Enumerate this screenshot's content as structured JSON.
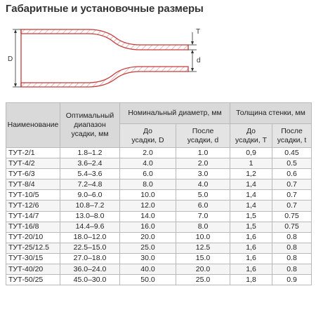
{
  "title": "Габаритные и установочные размеры",
  "diagram": {
    "label_D": "D",
    "label_T": "T",
    "label_d": "d"
  },
  "table": {
    "headers": {
      "name": "Наименование",
      "range_line1": "Оптимальный",
      "range_line2": "диапазон",
      "range_line3": "усадки, мм",
      "diameter_group": "Номинальный диаметр, мм",
      "wall_group": "Толщина стенки, мм",
      "before_D_line1": "До",
      "before_D_line2": "усадки, D",
      "after_d_line1": "После",
      "after_d_line2": "усадки, d",
      "before_T_line1": "До",
      "before_T_line2": "усадки, T",
      "after_t_line1": "После",
      "after_t_line2": "усадки, t"
    },
    "rows": [
      {
        "name": "ТУТ-2/1",
        "range": "1.8–1.2",
        "D": "2.0",
        "d": "1.0",
        "T": "0,9",
        "t": "0.45"
      },
      {
        "name": "ТУТ-4/2",
        "range": "3.6–2.4",
        "D": "4.0",
        "d": "2.0",
        "T": "1",
        "t": "0.5"
      },
      {
        "name": "ТУТ-6/3",
        "range": "5.4–3.6",
        "D": "6.0",
        "d": "3.0",
        "T": "1,2",
        "t": "0.6"
      },
      {
        "name": "ТУТ-8/4",
        "range": "7.2–4.8",
        "D": "8.0",
        "d": "4.0",
        "T": "1,4",
        "t": "0.7"
      },
      {
        "name": "ТУТ-10/5",
        "range": "9.0–6.0",
        "D": "10.0",
        "d": "5.0",
        "T": "1,4",
        "t": "0.7"
      },
      {
        "name": "ТУТ-12/6",
        "range": "10.8–7.2",
        "D": "12.0",
        "d": "6.0",
        "T": "1,4",
        "t": "0.7"
      },
      {
        "name": "ТУТ-14/7",
        "range": "13.0–8.0",
        "D": "14.0",
        "d": "7.0",
        "T": "1,5",
        "t": "0.75"
      },
      {
        "name": "ТУТ-16/8",
        "range": "14.4–9.6",
        "D": "16.0",
        "d": "8.0",
        "T": "1,5",
        "t": "0.75"
      },
      {
        "name": "ТУТ-20/10",
        "range": "18.0–12.0",
        "D": "20.0",
        "d": "10.0",
        "T": "1,6",
        "t": "0.8"
      },
      {
        "name": "ТУТ-25/12.5",
        "range": "22.5–15.0",
        "D": "25.0",
        "d": "12.5",
        "T": "1,6",
        "t": "0.8"
      },
      {
        "name": "ТУТ-30/15",
        "range": "27.0–18.0",
        "D": "30.0",
        "d": "15.0",
        "T": "1,6",
        "t": "0.8"
      },
      {
        "name": "ТУТ-40/20",
        "range": "36.0–24.0",
        "D": "40.0",
        "d": "20.0",
        "T": "1,6",
        "t": "0.8"
      },
      {
        "name": "ТУТ-50/25",
        "range": "45.0–30.0",
        "D": "50.0",
        "d": "25.0",
        "T": "1,8",
        "t": "0.9"
      }
    ]
  }
}
